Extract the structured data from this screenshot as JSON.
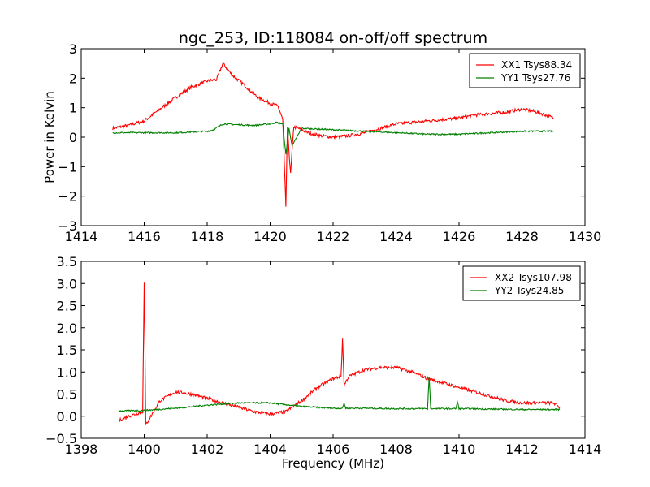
{
  "title": "ngc_253, ID:118084 on-off/off spectrum",
  "chart_data": [
    {
      "type": "line",
      "ylabel": "Power in Kelvin",
      "xlabel": "",
      "xlim": [
        1414,
        1430
      ],
      "ylim": [
        -3,
        3
      ],
      "xticks": [
        "1414",
        "1416",
        "1418",
        "1420",
        "1422",
        "1424",
        "1426",
        "1428",
        "1430"
      ],
      "yticks": [
        "−3",
        "−2",
        "−1",
        "0",
        "1",
        "2",
        "3"
      ],
      "legend_position": "upper-right",
      "series": [
        {
          "name": "XX1 Tsys88.34",
          "color": "#ff0000",
          "x": [
            1415.0,
            1415.5,
            1416.0,
            1416.5,
            1417.0,
            1417.5,
            1418.0,
            1418.3,
            1418.5,
            1418.8,
            1419.2,
            1419.6,
            1420.0,
            1420.25,
            1420.4,
            1420.5,
            1420.55,
            1420.65,
            1420.75,
            1420.9,
            1421.2,
            1421.6,
            1422.0,
            1422.5,
            1423.0,
            1423.5,
            1424.0,
            1424.5,
            1425.0,
            1425.5,
            1426.0,
            1426.5,
            1427.0,
            1427.5,
            1428.0,
            1428.5,
            1429.0
          ],
          "values": [
            0.3,
            0.4,
            0.55,
            0.95,
            1.35,
            1.7,
            1.9,
            1.95,
            2.5,
            2.1,
            1.75,
            1.35,
            1.15,
            1.05,
            0.6,
            -2.35,
            0.3,
            -1.25,
            0.35,
            0.3,
            0.15,
            0.05,
            0.0,
            0.05,
            0.15,
            0.3,
            0.45,
            0.5,
            0.55,
            0.6,
            0.65,
            0.75,
            0.8,
            0.85,
            0.95,
            0.85,
            0.65
          ]
        },
        {
          "name": "YY1 Tsys27.76",
          "color": "#008000",
          "x": [
            1415.0,
            1416.0,
            1417.0,
            1418.0,
            1418.2,
            1418.5,
            1419.0,
            1419.5,
            1420.0,
            1420.2,
            1420.4,
            1420.5,
            1420.6,
            1420.7,
            1421.0,
            1422.0,
            1423.0,
            1424.0,
            1425.0,
            1426.0,
            1427.0,
            1428.0,
            1429.0
          ],
          "values": [
            0.15,
            0.15,
            0.15,
            0.2,
            0.25,
            0.45,
            0.42,
            0.4,
            0.45,
            0.5,
            0.45,
            -0.6,
            0.3,
            -0.3,
            0.3,
            0.25,
            0.2,
            0.15,
            0.1,
            0.1,
            0.15,
            0.2,
            0.2
          ]
        }
      ]
    },
    {
      "type": "line",
      "ylabel": "",
      "xlabel": "Frequency (MHz)",
      "xlim": [
        1398,
        1414
      ],
      "ylim": [
        -0.5,
        3.5
      ],
      "xticks": [
        "1398",
        "1400",
        "1402",
        "1404",
        "1406",
        "1408",
        "1410",
        "1412",
        "1414"
      ],
      "yticks": [
        "−0.5",
        "0.0",
        "0.5",
        "1.0",
        "1.5",
        "2.0",
        "2.5",
        "3.0",
        "3.5"
      ],
      "legend_position": "upper-right",
      "series": [
        {
          "name": "XX2 Tsys107.98",
          "color": "#ff0000",
          "x": [
            1399.2,
            1399.5,
            1399.95,
            1400.0,
            1400.05,
            1400.5,
            1401.0,
            1401.5,
            1402.0,
            1402.5,
            1403.0,
            1403.5,
            1404.0,
            1404.5,
            1405.0,
            1405.5,
            1406.0,
            1406.25,
            1406.3,
            1406.35,
            1406.5,
            1407.0,
            1407.5,
            1408.0,
            1408.5,
            1409.0,
            1409.5,
            1410.0,
            1410.5,
            1411.0,
            1411.5,
            1412.0,
            1412.5,
            1413.0,
            1413.2
          ],
          "values": [
            -0.1,
            0.0,
            0.1,
            3.0,
            -0.2,
            0.35,
            0.55,
            0.5,
            0.4,
            0.3,
            0.2,
            0.1,
            0.05,
            0.1,
            0.35,
            0.65,
            0.85,
            0.9,
            1.75,
            0.7,
            0.9,
            1.05,
            1.1,
            1.1,
            1.0,
            0.85,
            0.75,
            0.65,
            0.55,
            0.45,
            0.35,
            0.3,
            0.3,
            0.3,
            0.2
          ]
        },
        {
          "name": "YY2 Tsys24.85",
          "color": "#008000",
          "x": [
            1399.2,
            1400.0,
            1401.0,
            1402.0,
            1403.0,
            1404.0,
            1405.0,
            1406.0,
            1406.3,
            1406.35,
            1406.4,
            1407.0,
            1408.0,
            1409.0,
            1409.05,
            1409.1,
            1409.9,
            1409.95,
            1410.0,
            1411.0,
            1412.0,
            1413.2
          ],
          "values": [
            0.12,
            0.13,
            0.18,
            0.25,
            0.3,
            0.3,
            0.22,
            0.18,
            0.18,
            0.3,
            0.18,
            0.18,
            0.17,
            0.17,
            0.9,
            0.17,
            0.17,
            0.32,
            0.17,
            0.16,
            0.15,
            0.15
          ]
        }
      ]
    }
  ]
}
